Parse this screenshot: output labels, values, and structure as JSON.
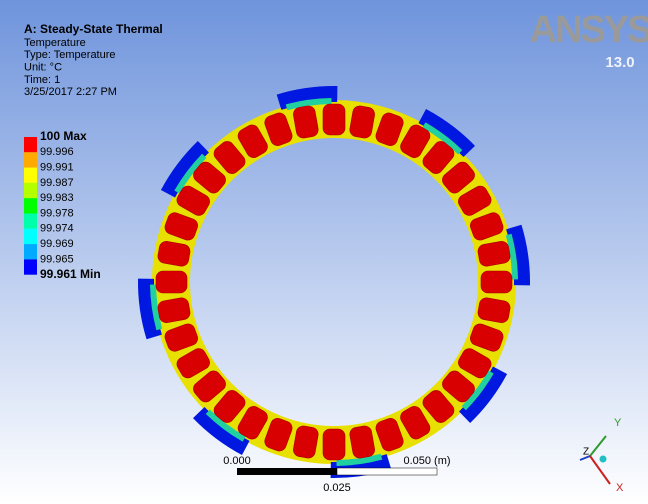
{
  "header": {
    "title": "A: Steady-State Thermal",
    "lines": [
      "Temperature",
      "Type: Temperature",
      "Unit: °C",
      "Time: 1",
      "3/25/2017 2:27 PM"
    ]
  },
  "legend": {
    "labels": [
      "100 Max",
      "99.996",
      "99.991",
      "99.987",
      "99.983",
      "99.978",
      "99.974",
      "99.969",
      "99.965",
      "99.961 Min"
    ],
    "bands": [
      "#ff0000",
      "#ffaa00",
      "#ffff00",
      "#b4ff00",
      "#00ff00",
      "#00ffaa",
      "#00ffff",
      "#00aaff",
      "#0000ff"
    ]
  },
  "logo": {
    "name": "ANSYS",
    "version": "13.0"
  },
  "scale_bar": {
    "start": "0.000",
    "end": "0.050 (m)",
    "middle": "0.025"
  },
  "triad": {
    "y": "Y",
    "z": "Z",
    "x": "X"
  }
}
